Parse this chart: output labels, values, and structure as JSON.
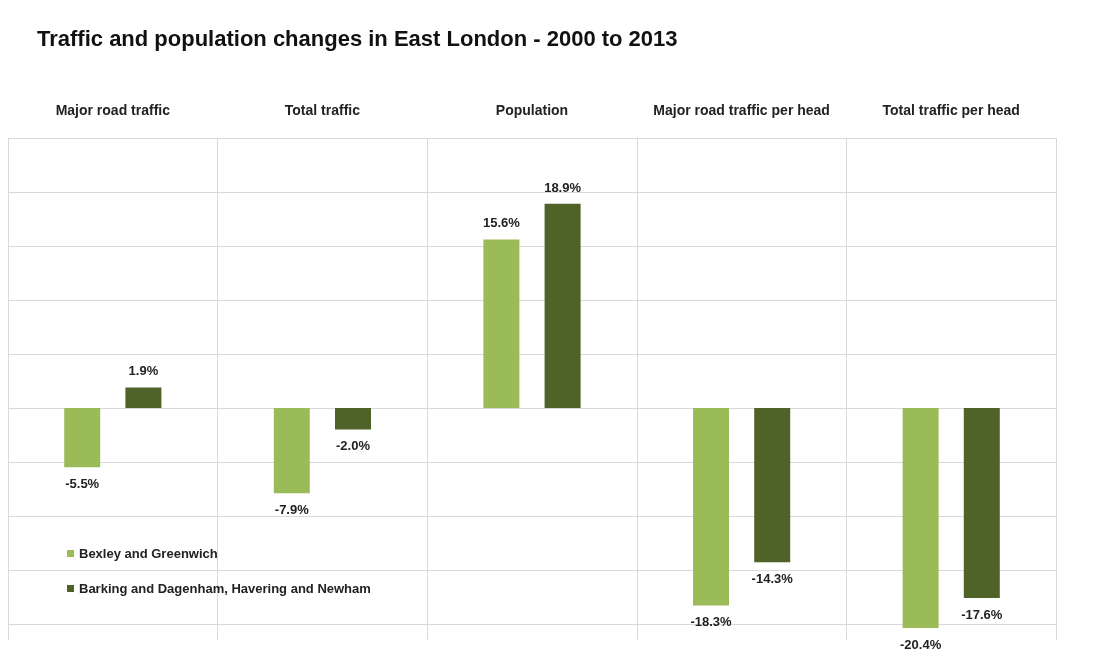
{
  "chart_data": {
    "type": "bar",
    "title": "Traffic and population changes in East London - 2000 to 2013",
    "categories": [
      "Major road traffic",
      "Total traffic",
      "Population",
      "Major road traffic per head",
      "Total traffic per head"
    ],
    "series": [
      {
        "name": "Bexley and Greenwich",
        "color": "#9bbb59",
        "values": [
          -5.5,
          -7.9,
          15.6,
          -18.3,
          -20.4
        ],
        "value_labels": [
          "-5.5%",
          "-7.9%",
          "15.6%",
          "-18.3%",
          "-20.4%"
        ]
      },
      {
        "name": "Barking and Dagenham, Havering and Newham",
        "color": "#4f6228",
        "values": [
          1.9,
          -2.0,
          18.9,
          -14.3,
          -17.6
        ],
        "value_labels": [
          "1.9%",
          "-2.0%",
          "18.9%",
          "-14.3%",
          "-17.6%"
        ]
      }
    ],
    "ylim": [
      -21.5,
      25
    ],
    "yticks": [
      {
        "value": -20,
        "label": null
      },
      {
        "value": -15,
        "label": null
      },
      {
        "value": -10,
        "label": null
      },
      {
        "value": -5,
        "label": null
      },
      {
        "value": 0,
        "label": null
      },
      {
        "value": 5,
        "label": null
      },
      {
        "value": 10,
        "label": null
      },
      {
        "value": 15,
        "label": null
      },
      {
        "value": 20,
        "label": null
      },
      {
        "value": 25,
        "label": null
      }
    ],
    "grid": true,
    "legend": "bottom left",
    "tick_labels": "x"
  }
}
